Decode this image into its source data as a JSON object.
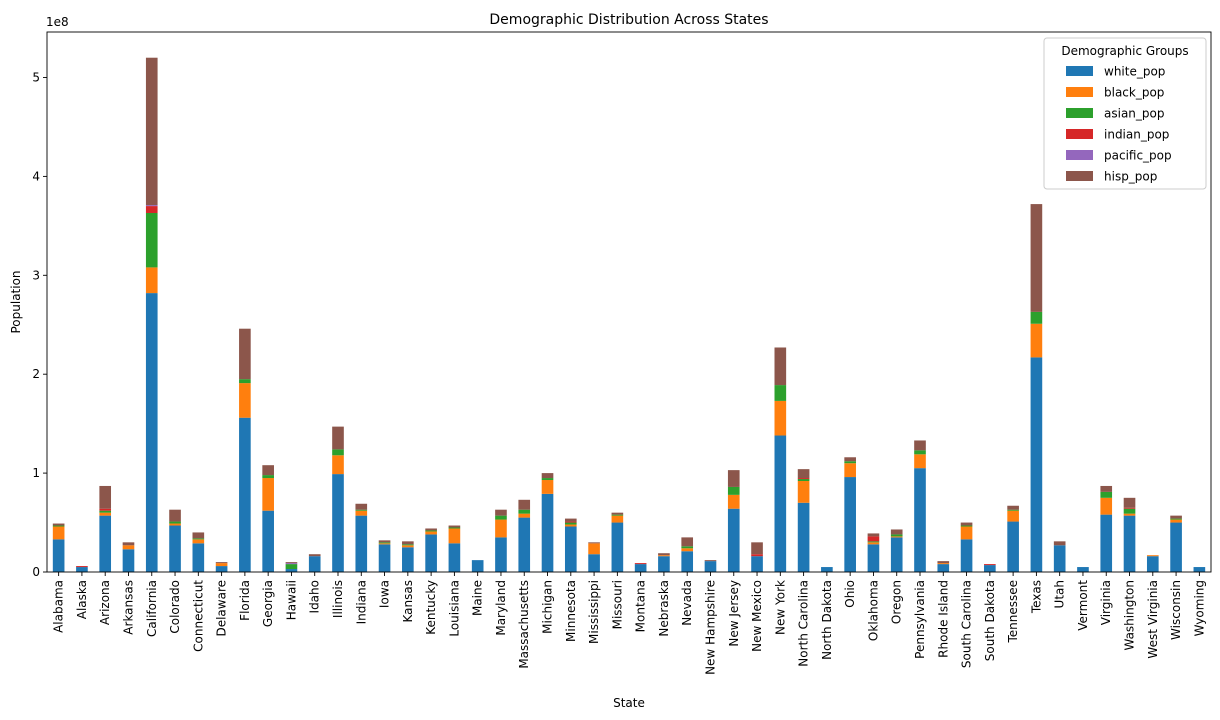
{
  "chart_data": {
    "type": "bar",
    "stacked": true,
    "title": "Demographic Distribution Across States",
    "xlabel": "State",
    "ylabel": "Population",
    "y_scale_label": "1e8",
    "y_multiplier": 100000000,
    "ylim": [
      0,
      5.46
    ],
    "y_ticks": [
      0,
      1,
      2,
      3,
      4,
      5
    ],
    "y_tick_labels": [
      "0",
      "1",
      "2",
      "3",
      "4",
      "5"
    ],
    "grid": false,
    "legend": {
      "title": "Demographic Groups",
      "placement": "top-right"
    },
    "categories": [
      "Alabama",
      "Alaska",
      "Arizona",
      "Arkansas",
      "California",
      "Colorado",
      "Connecticut",
      "Delaware",
      "Florida",
      "Georgia",
      "Hawaii",
      "Idaho",
      "Illinois",
      "Indiana",
      "Iowa",
      "Kansas",
      "Kentucky",
      "Louisiana",
      "Maine",
      "Maryland",
      "Massachusetts",
      "Michigan",
      "Minnesota",
      "Mississippi",
      "Missouri",
      "Montana",
      "Nebraska",
      "Nevada",
      "New Hampshire",
      "New Jersey",
      "New Mexico",
      "New York",
      "North Carolina",
      "North Dakota",
      "Ohio",
      "Oklahoma",
      "Oregon",
      "Pennsylvania",
      "Rhode Island",
      "South Carolina",
      "South Dakota",
      "Tennessee",
      "Texas",
      "Utah",
      "Vermont",
      "Virginia",
      "Washington",
      "West Virginia",
      "Wisconsin",
      "Wyoming"
    ],
    "series": [
      {
        "name": "white_pop",
        "color": "#1f77b4",
        "values": [
          0.33,
          0.05,
          0.57,
          0.23,
          2.82,
          0.47,
          0.29,
          0.06,
          1.56,
          0.62,
          0.03,
          0.16,
          0.99,
          0.57,
          0.28,
          0.25,
          0.38,
          0.29,
          0.12,
          0.35,
          0.55,
          0.79,
          0.46,
          0.18,
          0.5,
          0.08,
          0.16,
          0.21,
          0.11,
          0.64,
          0.16,
          1.38,
          0.7,
          0.05,
          0.96,
          0.28,
          0.35,
          1.05,
          0.08,
          0.33,
          0.07,
          0.51,
          2.17,
          0.27,
          0.05,
          0.58,
          0.57,
          0.16,
          0.5,
          0.05
        ]
      },
      {
        "name": "black_pop",
        "color": "#ff7f0e",
        "values": [
          0.13,
          0.0,
          0.03,
          0.04,
          0.26,
          0.02,
          0.04,
          0.03,
          0.35,
          0.33,
          0.0,
          0.0,
          0.19,
          0.05,
          0.01,
          0.02,
          0.03,
          0.15,
          0.0,
          0.18,
          0.04,
          0.14,
          0.02,
          0.11,
          0.07,
          0.0,
          0.01,
          0.03,
          0.0,
          0.14,
          0.0,
          0.35,
          0.22,
          0.0,
          0.14,
          0.02,
          0.01,
          0.14,
          0.01,
          0.13,
          0.0,
          0.11,
          0.34,
          0.0,
          0.0,
          0.17,
          0.02,
          0.01,
          0.03,
          0.0
        ]
      },
      {
        "name": "asian_pop",
        "color": "#2ca02c",
        "values": [
          0.01,
          0.0,
          0.02,
          0.0,
          0.55,
          0.02,
          0.01,
          0.0,
          0.04,
          0.03,
          0.05,
          0.0,
          0.06,
          0.01,
          0.01,
          0.01,
          0.01,
          0.01,
          0.0,
          0.04,
          0.04,
          0.02,
          0.02,
          0.0,
          0.01,
          0.0,
          0.0,
          0.02,
          0.0,
          0.08,
          0.0,
          0.16,
          0.02,
          0.0,
          0.02,
          0.01,
          0.02,
          0.04,
          0.0,
          0.01,
          0.0,
          0.01,
          0.12,
          0.0,
          0.0,
          0.06,
          0.05,
          0.0,
          0.01,
          0.0
        ]
      },
      {
        "name": "indian_pop",
        "color": "#d62728",
        "values": [
          0.0,
          0.01,
          0.02,
          0.0,
          0.07,
          0.0,
          0.0,
          0.0,
          0.0,
          0.0,
          0.0,
          0.0,
          0.0,
          0.0,
          0.0,
          0.0,
          0.0,
          0.0,
          0.0,
          0.0,
          0.0,
          0.0,
          0.01,
          0.0,
          0.0,
          0.01,
          0.0,
          0.0,
          0.0,
          0.0,
          0.02,
          0.0,
          0.01,
          0.0,
          0.0,
          0.05,
          0.0,
          0.0,
          0.0,
          0.0,
          0.01,
          0.0,
          0.0,
          0.0,
          0.0,
          0.0,
          0.01,
          0.0,
          0.0,
          0.0
        ]
      },
      {
        "name": "pacific_pop",
        "color": "#9467bd",
        "values": [
          0.0,
          0.0,
          0.0,
          0.0,
          0.01,
          0.0,
          0.0,
          0.0,
          0.0,
          0.0,
          0.01,
          0.0,
          0.0,
          0.0,
          0.0,
          0.0,
          0.0,
          0.0,
          0.0,
          0.0,
          0.0,
          0.0,
          0.0,
          0.0,
          0.0,
          0.0,
          0.0,
          0.0,
          0.0,
          0.0,
          0.0,
          0.0,
          0.0,
          0.0,
          0.0,
          0.0,
          0.0,
          0.0,
          0.0,
          0.0,
          0.0,
          0.0,
          0.0,
          0.0,
          0.0,
          0.0,
          0.0,
          0.0,
          0.0,
          0.0
        ]
      },
      {
        "name": "hisp_pop",
        "color": "#8c564b",
        "values": [
          0.02,
          0.0,
          0.23,
          0.03,
          1.49,
          0.12,
          0.06,
          0.01,
          0.51,
          0.1,
          0.01,
          0.02,
          0.23,
          0.06,
          0.02,
          0.03,
          0.02,
          0.02,
          0.0,
          0.06,
          0.1,
          0.05,
          0.03,
          0.01,
          0.02,
          0.0,
          0.02,
          0.09,
          0.01,
          0.17,
          0.12,
          0.38,
          0.09,
          0.0,
          0.04,
          0.03,
          0.05,
          0.1,
          0.02,
          0.03,
          0.0,
          0.04,
          1.09,
          0.04,
          0.0,
          0.06,
          0.1,
          0.0,
          0.03,
          0.0
        ]
      }
    ]
  }
}
